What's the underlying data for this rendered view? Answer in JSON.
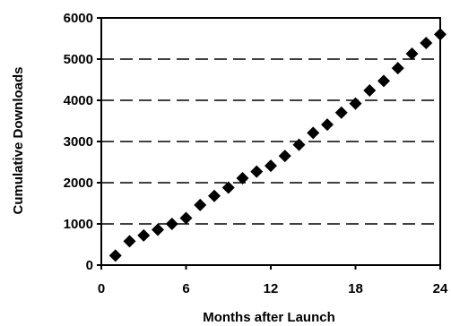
{
  "chart_data": {
    "type": "scatter",
    "title": "",
    "xlabel": "Months after Launch",
    "ylabel": "Cumulative Downloads",
    "xlim": [
      0,
      24
    ],
    "ylim": [
      0,
      6000
    ],
    "x_ticks": [
      0,
      6,
      12,
      18,
      24
    ],
    "y_ticks": [
      0,
      1000,
      2000,
      3000,
      4000,
      5000,
      6000
    ],
    "x_tick_labels": [
      "0",
      "6",
      "12",
      "18",
      "24"
    ],
    "y_tick_labels": [
      "0",
      "1000",
      "2000",
      "3000",
      "4000",
      "5000",
      "6000"
    ],
    "grid": "horizontal dashed",
    "marker": "diamond",
    "marker_color": "#000000",
    "series": [
      {
        "x": [
          1,
          2,
          3,
          4,
          5,
          6,
          7,
          8,
          9,
          10,
          11,
          12,
          13,
          14,
          15,
          16,
          17,
          18,
          19,
          20,
          21,
          22,
          23,
          24
        ],
        "y": [
          230,
          580,
          720,
          860,
          1000,
          1140,
          1460,
          1680,
          1880,
          2110,
          2270,
          2410,
          2650,
          2920,
          3210,
          3410,
          3700,
          3920,
          4240,
          4470,
          4780,
          5130,
          5390,
          5600
        ]
      }
    ]
  }
}
